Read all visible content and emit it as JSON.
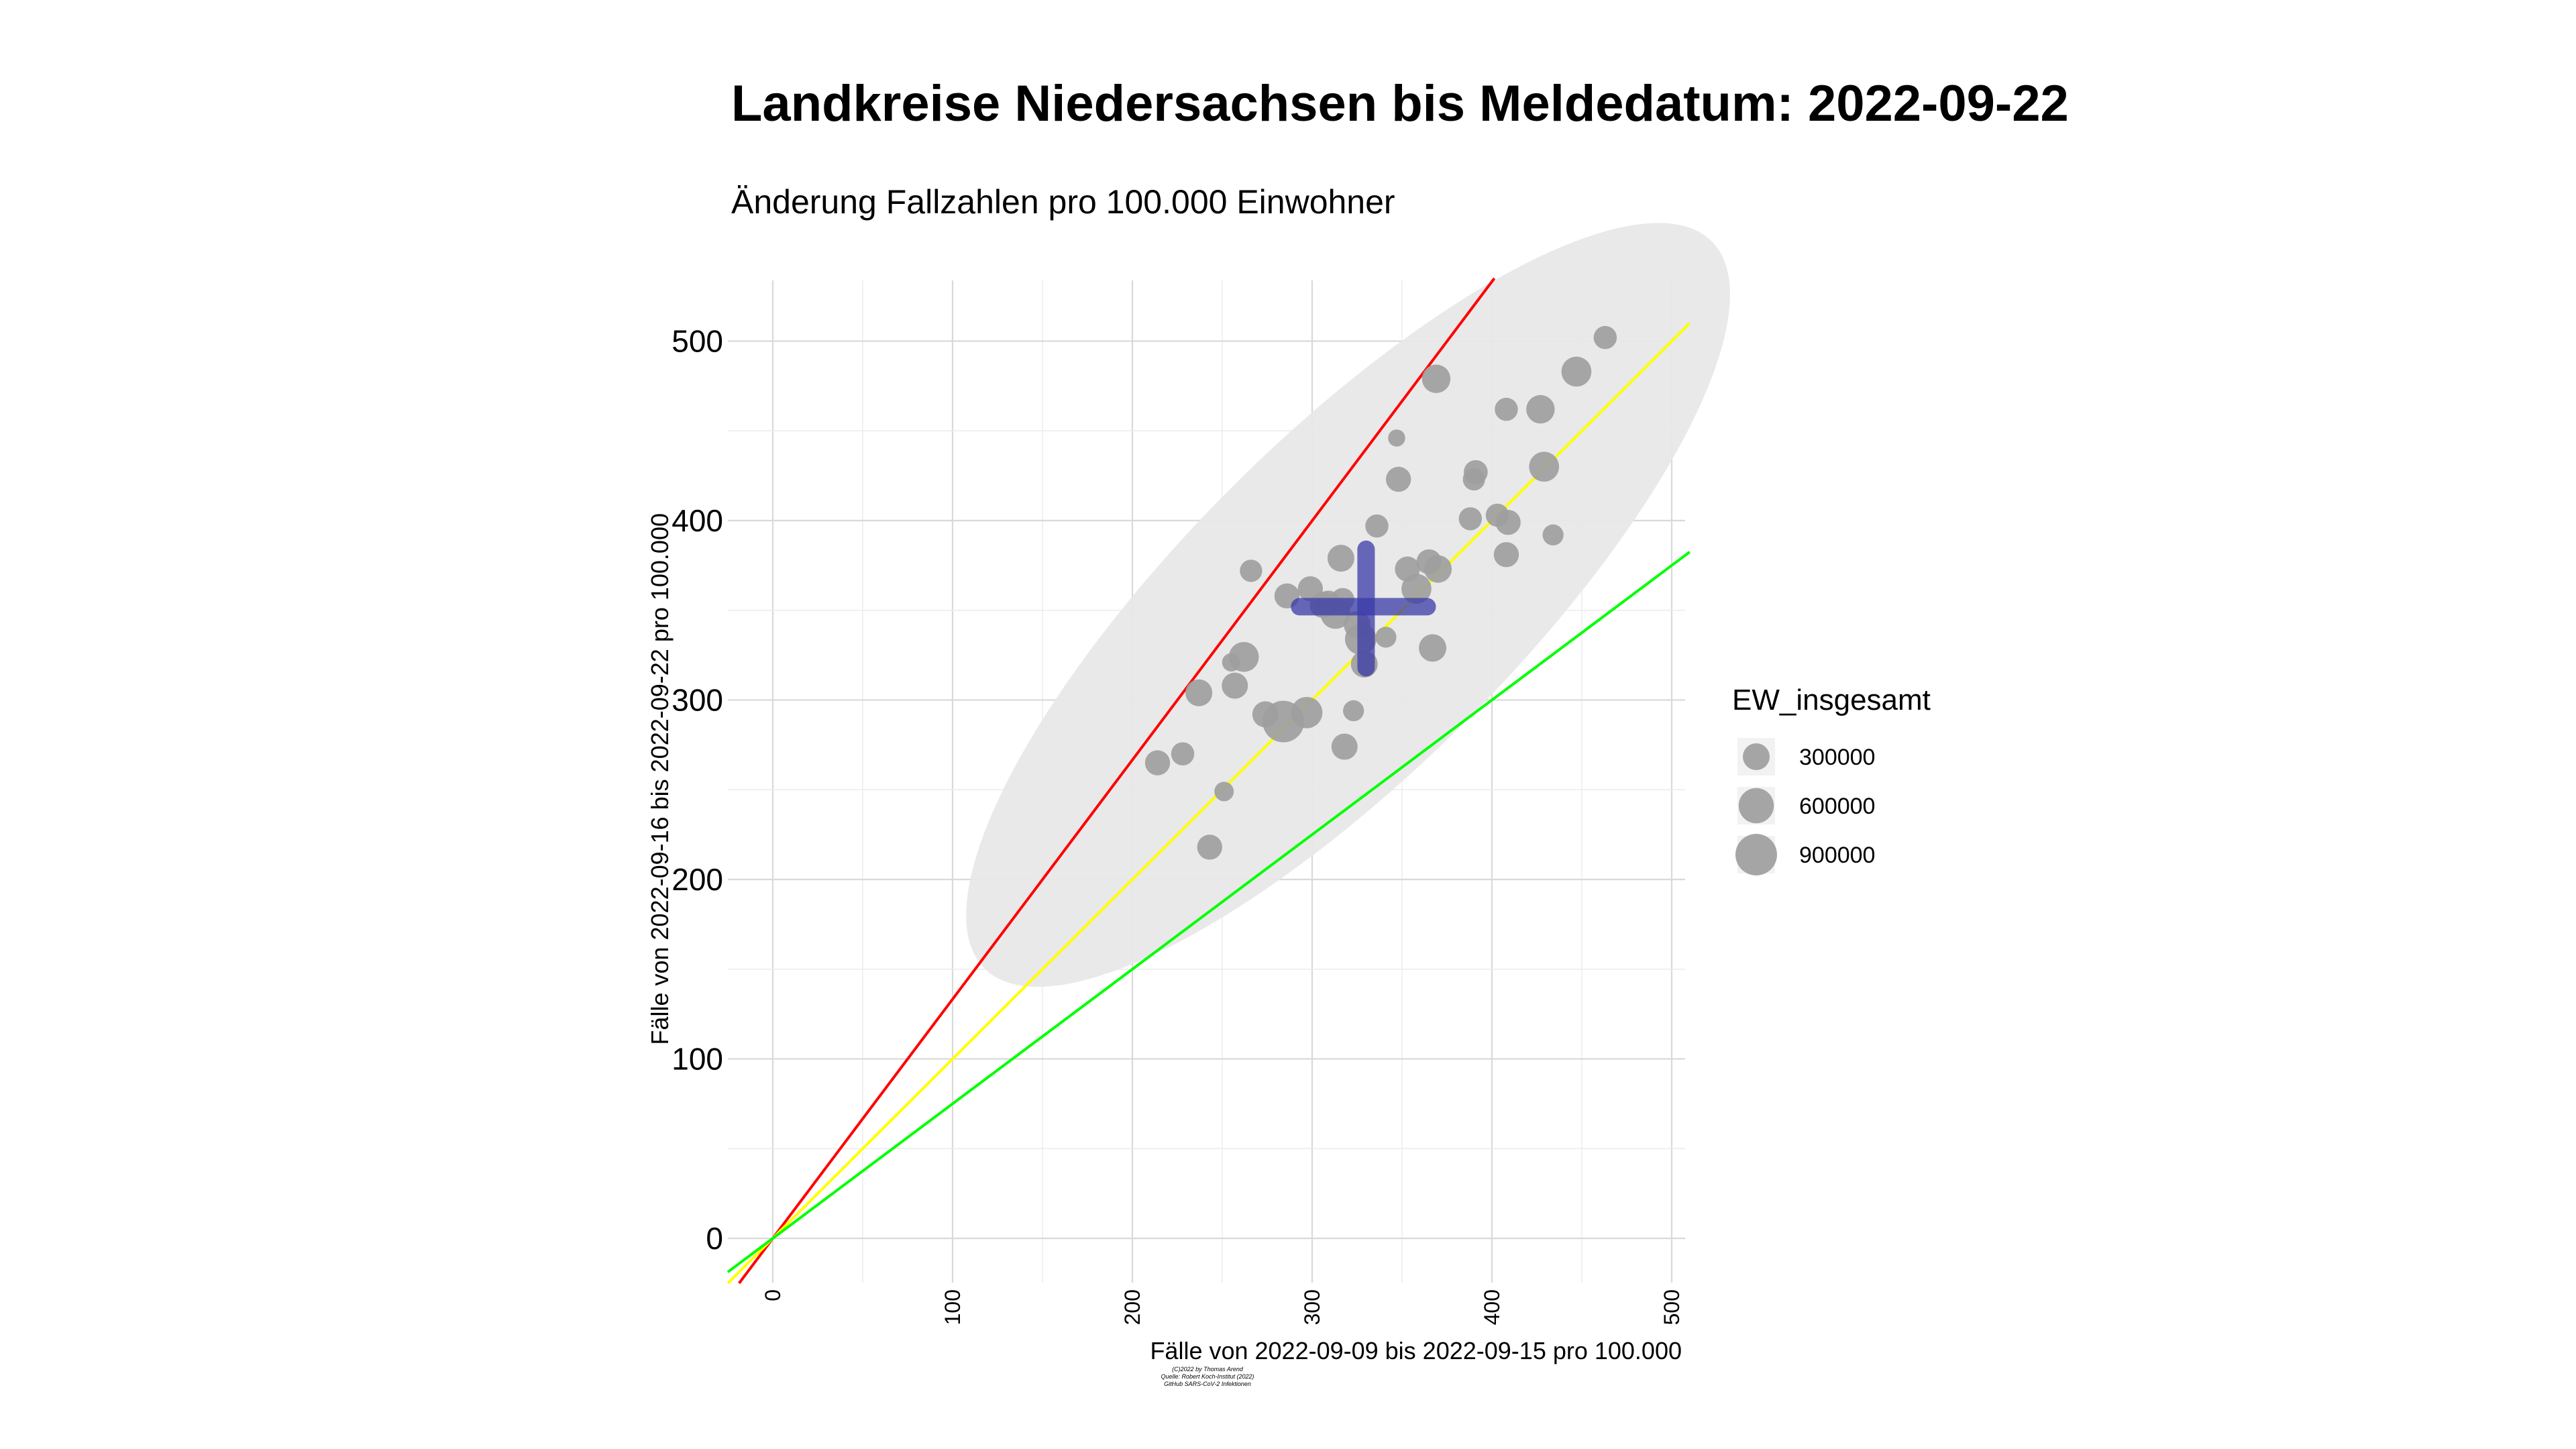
{
  "chart_data": {
    "type": "scatter",
    "title": "Landkreise Niedersachsen bis Meldedatum: 2022-09-22",
    "subtitle": "Änderung Fallzahlen pro 100.000 Einwohner",
    "xlabel": "Fälle von 2022-09-09 bis 2022-09-15 pro 100.000",
    "ylabel": "Fälle von 2022-09-16 bis 2022-09-22 pro 100.000",
    "xlim": [
      -25,
      510
    ],
    "ylim": [
      -25,
      535
    ],
    "x_ticks": [
      0,
      100,
      200,
      300,
      400,
      500
    ],
    "y_ticks": [
      0,
      100,
      200,
      300,
      400,
      500
    ],
    "grid": true,
    "reference_lines": [
      {
        "slope": 1.333,
        "color": "#ff0000"
      },
      {
        "slope": 1.0,
        "color": "#ffff00"
      },
      {
        "slope": 0.75,
        "color": "#00ff00"
      }
    ],
    "ellipse": {
      "cx": 320,
      "cy": 353,
      "major": 286,
      "minor": 92,
      "angle_deg": 45,
      "color": "#e8e8e8"
    },
    "mean_cross": {
      "x": 330,
      "y": 352,
      "x_range": [
        293,
        364
      ],
      "y_range": [
        318,
        384
      ],
      "color": "#3a3aa8"
    },
    "point_color": "#9e9e9e",
    "points": [
      {
        "x": 463,
        "y": 502,
        "ew": 200000
      },
      {
        "x": 447,
        "y": 483,
        "ew": 400000
      },
      {
        "x": 369,
        "y": 479,
        "ew": 350000
      },
      {
        "x": 427,
        "y": 462,
        "ew": 350000
      },
      {
        "x": 408,
        "y": 462,
        "ew": 200000
      },
      {
        "x": 347,
        "y": 446,
        "ew": 80000
      },
      {
        "x": 429,
        "y": 430,
        "ew": 400000
      },
      {
        "x": 391,
        "y": 427,
        "ew": 220000
      },
      {
        "x": 390,
        "y": 423,
        "ew": 180000
      },
      {
        "x": 348,
        "y": 423,
        "ew": 250000
      },
      {
        "x": 388,
        "y": 401,
        "ew": 200000
      },
      {
        "x": 403,
        "y": 403,
        "ew": 200000
      },
      {
        "x": 409,
        "y": 399,
        "ew": 250000
      },
      {
        "x": 336,
        "y": 397,
        "ew": 200000
      },
      {
        "x": 434,
        "y": 392,
        "ew": 150000
      },
      {
        "x": 408,
        "y": 381,
        "ew": 250000
      },
      {
        "x": 316,
        "y": 379,
        "ew": 300000
      },
      {
        "x": 266,
        "y": 372,
        "ew": 180000
      },
      {
        "x": 365,
        "y": 377,
        "ew": 250000
      },
      {
        "x": 370,
        "y": 373,
        "ew": 320000
      },
      {
        "x": 353,
        "y": 373,
        "ew": 250000
      },
      {
        "x": 358,
        "y": 362,
        "ew": 400000
      },
      {
        "x": 299,
        "y": 362,
        "ew": 250000
      },
      {
        "x": 286,
        "y": 358,
        "ew": 250000
      },
      {
        "x": 317,
        "y": 356,
        "ew": 200000
      },
      {
        "x": 309,
        "y": 354,
        "ew": 250000
      },
      {
        "x": 306,
        "y": 353,
        "ew": 280000
      },
      {
        "x": 313,
        "y": 348,
        "ew": 400000
      },
      {
        "x": 325,
        "y": 342,
        "ew": 300000
      },
      {
        "x": 341,
        "y": 335,
        "ew": 150000
      },
      {
        "x": 327,
        "y": 334,
        "ew": 450000
      },
      {
        "x": 367,
        "y": 329,
        "ew": 320000
      },
      {
        "x": 262,
        "y": 324,
        "ew": 400000
      },
      {
        "x": 255,
        "y": 321,
        "ew": 100000
      },
      {
        "x": 329,
        "y": 320,
        "ew": 300000
      },
      {
        "x": 257,
        "y": 308,
        "ew": 280000
      },
      {
        "x": 237,
        "y": 304,
        "ew": 300000
      },
      {
        "x": 323,
        "y": 294,
        "ew": 150000
      },
      {
        "x": 274,
        "y": 292,
        "ew": 280000
      },
      {
        "x": 284,
        "y": 288,
        "ew": 900000
      },
      {
        "x": 297,
        "y": 293,
        "ew": 450000
      },
      {
        "x": 318,
        "y": 274,
        "ew": 280000
      },
      {
        "x": 228,
        "y": 270,
        "ew": 200000
      },
      {
        "x": 214,
        "y": 265,
        "ew": 250000
      },
      {
        "x": 251,
        "y": 249,
        "ew": 120000
      },
      {
        "x": 243,
        "y": 218,
        "ew": 250000
      }
    ],
    "legend": {
      "title": "EW_insgesamt",
      "placement": "right",
      "entries": [
        {
          "label": "300000",
          "value": 300000
        },
        {
          "label": "600000",
          "value": 600000
        },
        {
          "label": "900000",
          "value": 900000
        }
      ]
    },
    "caption_lines": [
      "(C)2022 by Thomas Arend",
      "Quelle: Robert Koch-Institut (2022)",
      "GitHub SARS-CoV-2 Infektionen"
    ]
  }
}
